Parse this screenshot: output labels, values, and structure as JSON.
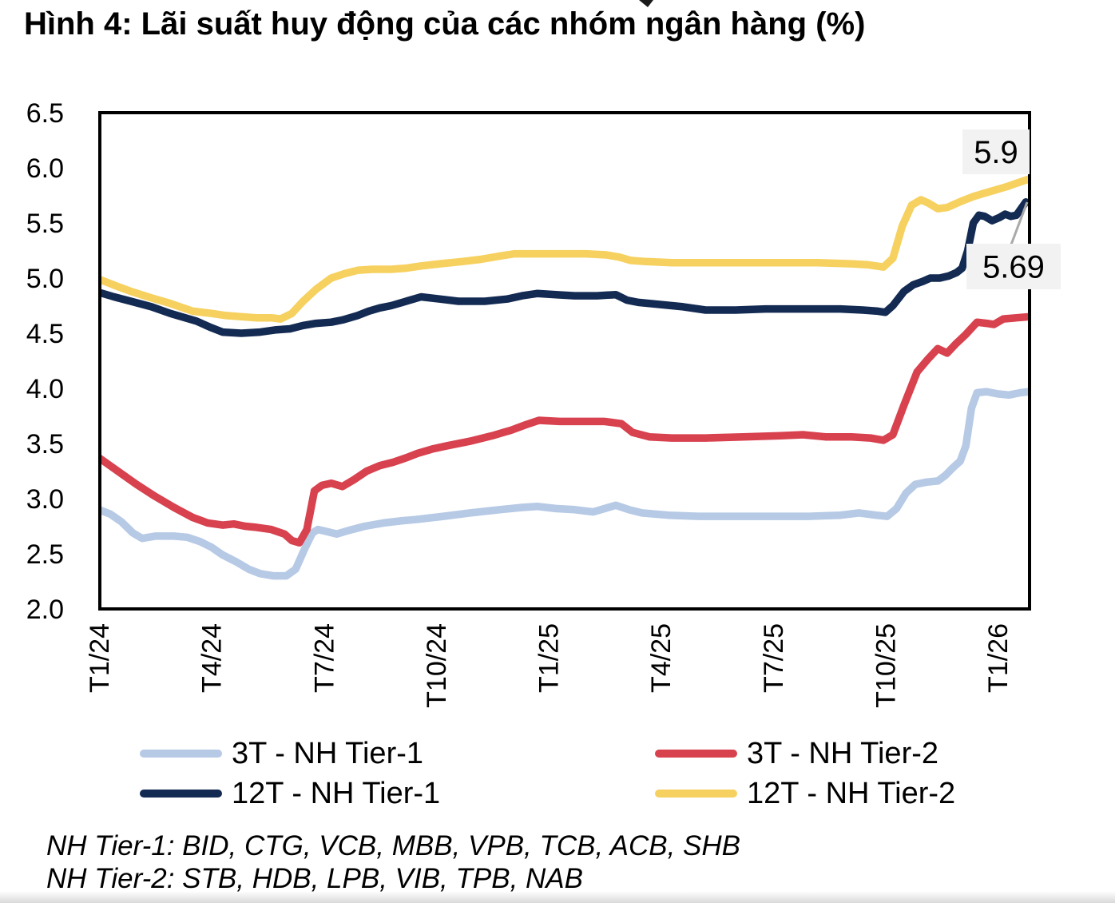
{
  "page": {
    "title": "Hình 4: Lãi suất huy động của các nhóm ngân hàng (%)",
    "footnotes": [
      "NH Tier-1: BID, CTG, VCB, MBB, VPB, TCB, ACB, SHB",
      "NH Tier-2: STB, HDB, LPB, VIB, TPB, NAB"
    ]
  },
  "legend": {
    "items": [
      {
        "label": "3T - NH Tier-1",
        "color": "#b6c9e5"
      },
      {
        "label": "3T - NH Tier-2",
        "color": "#d8414e"
      },
      {
        "label": "12T - NH Tier-1",
        "color": "#132a52"
      },
      {
        "label": "12T - NH Tier-2",
        "color": "#f6d15f"
      }
    ]
  },
  "chart_data": {
    "type": "line",
    "title": "Hình 4: Lãi suất huy động của các nhóm ngân hàng (%)",
    "xlabel": "",
    "ylabel": "%",
    "ylim": [
      2.0,
      6.5
    ],
    "y_ticks": [
      6.5,
      6.0,
      5.5,
      5.0,
      4.5,
      4.0,
      3.5,
      3.0,
      2.5,
      2.0
    ],
    "x_unit": "months since T1/24",
    "x_tick_months": [
      0,
      3,
      6,
      9,
      12,
      15,
      18,
      21,
      24
    ],
    "x_tick_labels": [
      "T1/24",
      "T4/24",
      "T7/24",
      "T10/24",
      "T1/25",
      "T4/25",
      "T7/25",
      "T10/25",
      "T1/26"
    ],
    "grid": false,
    "legend_position": "bottom",
    "annotations": [
      {
        "text": "5.9",
        "attached_to": "12T - NH Tier-2"
      },
      {
        "text": "5.69",
        "attached_to": "12T - NH Tier-1"
      }
    ],
    "series": [
      {
        "name": "3T - NH Tier-1",
        "color": "#b6c9e5",
        "points": [
          [
            0,
            2.9
          ],
          [
            0.3,
            2.86
          ],
          [
            0.6,
            2.79
          ],
          [
            0.9,
            2.69
          ],
          [
            1.15,
            2.64
          ],
          [
            1.5,
            2.66
          ],
          [
            2.0,
            2.66
          ],
          [
            2.35,
            2.65
          ],
          [
            2.7,
            2.61
          ],
          [
            3.0,
            2.56
          ],
          [
            3.3,
            2.49
          ],
          [
            3.65,
            2.43
          ],
          [
            4.0,
            2.36
          ],
          [
            4.3,
            2.32
          ],
          [
            4.65,
            2.3
          ],
          [
            5.0,
            2.3
          ],
          [
            5.25,
            2.36
          ],
          [
            5.5,
            2.55
          ],
          [
            5.7,
            2.69
          ],
          [
            5.85,
            2.72
          ],
          [
            6.1,
            2.7
          ],
          [
            6.35,
            2.68
          ],
          [
            6.65,
            2.71
          ],
          [
            7.1,
            2.75
          ],
          [
            7.6,
            2.78
          ],
          [
            8.1,
            2.8
          ],
          [
            8.45,
            2.81
          ],
          [
            9.2,
            2.84
          ],
          [
            9.9,
            2.87
          ],
          [
            10.7,
            2.9
          ],
          [
            11.3,
            2.92
          ],
          [
            11.7,
            2.93
          ],
          [
            12.2,
            2.91
          ],
          [
            12.7,
            2.9
          ],
          [
            13.2,
            2.88
          ],
          [
            13.8,
            2.94
          ],
          [
            14.15,
            2.9
          ],
          [
            14.5,
            2.87
          ],
          [
            15.2,
            2.85
          ],
          [
            16,
            2.84
          ],
          [
            17,
            2.84
          ],
          [
            18,
            2.84
          ],
          [
            19,
            2.84
          ],
          [
            19.8,
            2.85
          ],
          [
            20.3,
            2.87
          ],
          [
            20.75,
            2.85
          ],
          [
            21.05,
            2.84
          ],
          [
            21.3,
            2.91
          ],
          [
            21.55,
            3.05
          ],
          [
            21.8,
            3.13
          ],
          [
            22.1,
            3.15
          ],
          [
            22.4,
            3.16
          ],
          [
            22.6,
            3.21
          ],
          [
            22.8,
            3.28
          ],
          [
            23.0,
            3.34
          ],
          [
            23.15,
            3.48
          ],
          [
            23.3,
            3.82
          ],
          [
            23.45,
            3.96
          ],
          [
            23.7,
            3.97
          ],
          [
            24.0,
            3.95
          ],
          [
            24.3,
            3.94
          ],
          [
            24.6,
            3.96
          ],
          [
            24.85,
            3.97
          ]
        ]
      },
      {
        "name": "3T - NH Tier-2",
        "color": "#d8414e",
        "points": [
          [
            0,
            3.37
          ],
          [
            0.5,
            3.25
          ],
          [
            1.0,
            3.13
          ],
          [
            1.5,
            3.02
          ],
          [
            2.0,
            2.92
          ],
          [
            2.5,
            2.83
          ],
          [
            2.9,
            2.78
          ],
          [
            3.3,
            2.76
          ],
          [
            3.6,
            2.77
          ],
          [
            3.9,
            2.75
          ],
          [
            4.2,
            2.74
          ],
          [
            4.6,
            2.72
          ],
          [
            4.95,
            2.68
          ],
          [
            5.15,
            2.62
          ],
          [
            5.35,
            2.6
          ],
          [
            5.55,
            2.72
          ],
          [
            5.75,
            3.07
          ],
          [
            5.95,
            3.12
          ],
          [
            6.2,
            3.14
          ],
          [
            6.5,
            3.11
          ],
          [
            6.8,
            3.17
          ],
          [
            7.15,
            3.25
          ],
          [
            7.5,
            3.3
          ],
          [
            7.85,
            3.33
          ],
          [
            8.2,
            3.37
          ],
          [
            8.5,
            3.41
          ],
          [
            8.9,
            3.45
          ],
          [
            9.3,
            3.48
          ],
          [
            9.9,
            3.52
          ],
          [
            10.5,
            3.57
          ],
          [
            11.0,
            3.62
          ],
          [
            11.4,
            3.67
          ],
          [
            11.75,
            3.71
          ],
          [
            12.3,
            3.7
          ],
          [
            12.9,
            3.7
          ],
          [
            13.5,
            3.7
          ],
          [
            13.95,
            3.68
          ],
          [
            14.25,
            3.6
          ],
          [
            14.7,
            3.56
          ],
          [
            15.3,
            3.55
          ],
          [
            16.2,
            3.55
          ],
          [
            17.2,
            3.56
          ],
          [
            18.2,
            3.57
          ],
          [
            18.8,
            3.58
          ],
          [
            19.4,
            3.56
          ],
          [
            20.1,
            3.56
          ],
          [
            20.6,
            3.55
          ],
          [
            20.95,
            3.53
          ],
          [
            21.2,
            3.58
          ],
          [
            21.5,
            3.85
          ],
          [
            21.85,
            4.15
          ],
          [
            22.15,
            4.27
          ],
          [
            22.4,
            4.36
          ],
          [
            22.65,
            4.32
          ],
          [
            22.9,
            4.41
          ],
          [
            23.15,
            4.49
          ],
          [
            23.45,
            4.6
          ],
          [
            23.7,
            4.59
          ],
          [
            23.9,
            4.58
          ],
          [
            24.15,
            4.63
          ],
          [
            24.5,
            4.64
          ],
          [
            24.85,
            4.65
          ]
        ]
      },
      {
        "name": "12T - NH Tier-1",
        "color": "#132a52",
        "points": [
          [
            0,
            4.87
          ],
          [
            0.4,
            4.83
          ],
          [
            0.85,
            4.79
          ],
          [
            1.4,
            4.74
          ],
          [
            1.9,
            4.68
          ],
          [
            2.3,
            4.64
          ],
          [
            2.6,
            4.61
          ],
          [
            3.0,
            4.55
          ],
          [
            3.3,
            4.51
          ],
          [
            3.8,
            4.5
          ],
          [
            4.3,
            4.51
          ],
          [
            4.7,
            4.53
          ],
          [
            5.1,
            4.54
          ],
          [
            5.45,
            4.57
          ],
          [
            5.8,
            4.59
          ],
          [
            6.2,
            4.6
          ],
          [
            6.5,
            4.62
          ],
          [
            6.9,
            4.66
          ],
          [
            7.2,
            4.7
          ],
          [
            7.5,
            4.73
          ],
          [
            7.8,
            4.75
          ],
          [
            8.1,
            4.78
          ],
          [
            8.6,
            4.83
          ],
          [
            9.1,
            4.81
          ],
          [
            9.6,
            4.79
          ],
          [
            10.3,
            4.79
          ],
          [
            10.9,
            4.81
          ],
          [
            11.3,
            4.84
          ],
          [
            11.7,
            4.86
          ],
          [
            12.2,
            4.85
          ],
          [
            12.7,
            4.84
          ],
          [
            13.3,
            4.84
          ],
          [
            13.8,
            4.85
          ],
          [
            14.1,
            4.8
          ],
          [
            14.4,
            4.78
          ],
          [
            15.0,
            4.76
          ],
          [
            15.6,
            4.74
          ],
          [
            16.2,
            4.71
          ],
          [
            17.0,
            4.71
          ],
          [
            17.8,
            4.72
          ],
          [
            18.8,
            4.72
          ],
          [
            19.8,
            4.72
          ],
          [
            20.4,
            4.71
          ],
          [
            20.8,
            4.7
          ],
          [
            21.0,
            4.69
          ],
          [
            21.2,
            4.75
          ],
          [
            21.5,
            4.88
          ],
          [
            21.75,
            4.94
          ],
          [
            22.0,
            4.97
          ],
          [
            22.2,
            5.0
          ],
          [
            22.45,
            5.0
          ],
          [
            22.7,
            5.02
          ],
          [
            22.9,
            5.05
          ],
          [
            23.05,
            5.09
          ],
          [
            23.2,
            5.25
          ],
          [
            23.35,
            5.5
          ],
          [
            23.5,
            5.57
          ],
          [
            23.65,
            5.56
          ],
          [
            23.85,
            5.52
          ],
          [
            24.05,
            5.55
          ],
          [
            24.2,
            5.58
          ],
          [
            24.35,
            5.56
          ],
          [
            24.5,
            5.57
          ],
          [
            24.75,
            5.69
          ]
        ]
      },
      {
        "name": "12T - NH Tier-2",
        "color": "#f6d15f",
        "points": [
          [
            0,
            4.99
          ],
          [
            0.45,
            4.93
          ],
          [
            0.85,
            4.88
          ],
          [
            1.4,
            4.82
          ],
          [
            1.9,
            4.77
          ],
          [
            2.5,
            4.7
          ],
          [
            3.0,
            4.68
          ],
          [
            3.4,
            4.66
          ],
          [
            3.8,
            4.65
          ],
          [
            4.2,
            4.64
          ],
          [
            4.6,
            4.64
          ],
          [
            4.85,
            4.63
          ],
          [
            5.15,
            4.68
          ],
          [
            5.45,
            4.79
          ],
          [
            5.8,
            4.9
          ],
          [
            6.2,
            5.0
          ],
          [
            6.55,
            5.04
          ],
          [
            6.9,
            5.07
          ],
          [
            7.3,
            5.08
          ],
          [
            7.8,
            5.08
          ],
          [
            8.2,
            5.09
          ],
          [
            8.6,
            5.11
          ],
          [
            9.1,
            5.13
          ],
          [
            9.7,
            5.15
          ],
          [
            10.2,
            5.17
          ],
          [
            10.7,
            5.2
          ],
          [
            11.1,
            5.22
          ],
          [
            11.7,
            5.22
          ],
          [
            12.4,
            5.22
          ],
          [
            13.0,
            5.22
          ],
          [
            13.55,
            5.21
          ],
          [
            13.9,
            5.19
          ],
          [
            14.2,
            5.16
          ],
          [
            14.6,
            5.15
          ],
          [
            15.3,
            5.14
          ],
          [
            16.2,
            5.14
          ],
          [
            17.2,
            5.14
          ],
          [
            18.2,
            5.14
          ],
          [
            19.2,
            5.14
          ],
          [
            20.1,
            5.13
          ],
          [
            20.55,
            5.12
          ],
          [
            20.95,
            5.1
          ],
          [
            21.2,
            5.18
          ],
          [
            21.45,
            5.47
          ],
          [
            21.7,
            5.66
          ],
          [
            21.95,
            5.71
          ],
          [
            22.15,
            5.68
          ],
          [
            22.4,
            5.63
          ],
          [
            22.65,
            5.64
          ],
          [
            22.85,
            5.67
          ],
          [
            23.05,
            5.7
          ],
          [
            23.35,
            5.74
          ],
          [
            23.65,
            5.77
          ],
          [
            23.95,
            5.8
          ],
          [
            24.25,
            5.83
          ],
          [
            24.5,
            5.86
          ],
          [
            24.85,
            5.9
          ]
        ]
      }
    ]
  },
  "style": {
    "annotation_bg": "#f2f2f2",
    "leader_line_color": "#a9a9a9",
    "axis_color": "#000000",
    "text_color": "#000000"
  }
}
